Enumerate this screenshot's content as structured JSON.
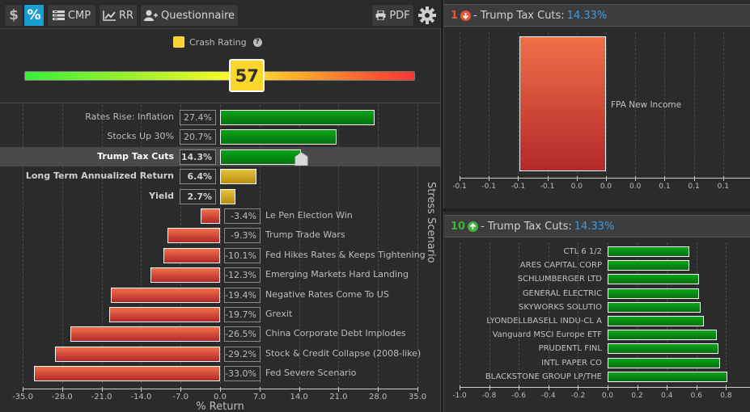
{
  "toolbar": {
    "dollar_label": "$",
    "percent_label": "%",
    "cmp_label": "CMP",
    "rr_label": "RR",
    "questionnaire_label": "Questionnaire",
    "pdf_label": "PDF",
    "active_mode": "percent"
  },
  "crash_rating": {
    "legend_label": "Crash Rating",
    "help_icon": "?",
    "value": "57",
    "scale_min": 0,
    "scale_max": 100,
    "colors": {
      "low": "#3bef3b",
      "mid": "#fbfb2a",
      "high": "#ff3333",
      "badge": "#fbd62b"
    }
  },
  "stress_chart": {
    "xlabel": "% Return",
    "ylabel": "Stress Scenario",
    "highlighted": "Trump Tax Cuts",
    "colors": {
      "positive": "#0aa51a",
      "neutral": "#e6c43a",
      "negative": "#e2553a",
      "highlight_row": "#4a4a4a"
    }
  },
  "chart_data": [
    {
      "type": "bar",
      "orientation": "horizontal",
      "title": "",
      "xlabel": "% Return",
      "ylabel": "Stress Scenario",
      "xlim": [
        -35.0,
        35.0
      ],
      "xticks": [
        "-35.0",
        "-28.0",
        "-21.0",
        "-14.0",
        "-7.0",
        "0.0",
        "7.0",
        "14.0",
        "21.0",
        "28.0",
        "35.0"
      ],
      "grid": true,
      "categories": [
        "Rates Rise: Inflation",
        "Stocks Up 30%",
        "Trump Tax Cuts",
        "Long Term Annualized Return",
        "Yield",
        "Le Pen Election Win",
        "Trump Trade Wars",
        "Fed Hikes Rates & Keeps Tightening",
        "Emerging Markets Hard Landing",
        "Negative Rates Come To US",
        "Grexit",
        "China Corporate Debt Implodes",
        "Stock & Credit Collapse (2008-like)",
        "Fed Severe Scenario"
      ],
      "values": [
        27.4,
        20.7,
        14.3,
        6.4,
        2.7,
        -3.4,
        -9.3,
        -10.1,
        -12.3,
        -19.4,
        -19.7,
        -26.5,
        -29.2,
        -33.0
      ],
      "value_labels": [
        "27.4%",
        "20.7%",
        "14.3%",
        "6.4%",
        "2.7%",
        "-3.4%",
        "-9.3%",
        "-10.1%",
        "-12.3%",
        "-19.4%",
        "-19.7%",
        "-26.5%",
        "-29.2%",
        "-33.0%"
      ],
      "kinds": [
        "pos",
        "pos",
        "pos",
        "metric",
        "metric",
        "neg",
        "neg",
        "neg",
        "neg",
        "neg",
        "neg",
        "neg",
        "neg",
        "neg"
      ],
      "bold": [
        false,
        false,
        true,
        true,
        true,
        false,
        false,
        false,
        false,
        false,
        false,
        false,
        false,
        false
      ]
    },
    {
      "type": "bar",
      "orientation": "horizontal",
      "title": "1 - Trump Tax Cuts: 14.33%",
      "categories": [
        "FPA New Income"
      ],
      "values": [
        -0.075
      ],
      "xlim": [
        -0.1,
        0.1
      ],
      "xticks": [
        "-0.1",
        "-0.1",
        "-0.1",
        "-0.1",
        "0.0",
        "0.0",
        "0.0",
        "0.1",
        "0.1",
        "0.1"
      ],
      "grid": true
    },
    {
      "type": "bar",
      "orientation": "horizontal",
      "title": "10 - Trump Tax Cuts: 14.33%",
      "categories": [
        "CTL 6 1/2",
        "ARES CAPITAL CORP",
        "SCHLUMBERGER LTD",
        "GENERAL ELECTRIC",
        "SKYWORKS SOLUTIO",
        "LYONDELLBASELL INDU-CL A",
        "Vanguard MSCI Europe ETF",
        "PRUDENTL FINL",
        "INTL PAPER CO",
        "BLACKSTONE GROUP LP/THE"
      ],
      "values": [
        0.55,
        0.55,
        0.62,
        0.62,
        0.63,
        0.65,
        0.74,
        0.75,
        0.76,
        0.81
      ],
      "xlim": [
        -1.0,
        0.9
      ],
      "xticks": [
        "-1.0",
        "-0.8",
        "-0.6",
        "-0.4",
        "-0.2",
        "0.0",
        "0.2",
        "0.4",
        "0.6",
        "0.8"
      ],
      "grid": true
    }
  ],
  "worst_panel": {
    "rank": "1",
    "direction_icon": "arrow-down-circle",
    "title": "- Trump Tax Cuts:",
    "value": "14.33%",
    "color": "#e8553a"
  },
  "best_panel": {
    "rank": "10",
    "direction_icon": "arrow-up-circle",
    "title": "- Trump Tax Cuts:",
    "value": "14.33%",
    "color": "#3cb43c"
  }
}
